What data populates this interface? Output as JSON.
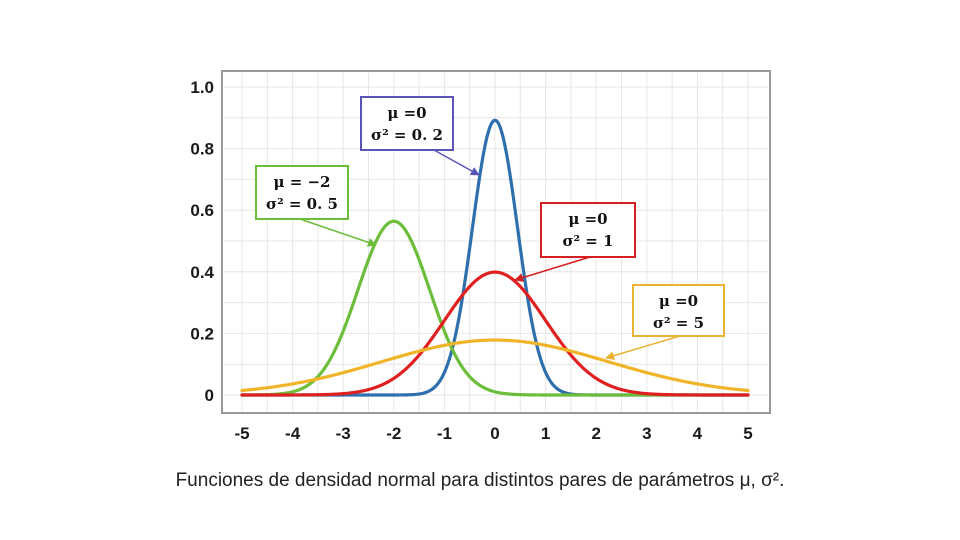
{
  "chart_data": {
    "type": "line",
    "title": "",
    "caption": "Funciones de densidad normal para distintos pares de parámetros μ, σ².",
    "xlim": [
      -5,
      5
    ],
    "ylim": [
      0,
      1.0
    ],
    "xticks": [
      -5,
      -4,
      -3,
      -2,
      -1,
      0,
      1,
      2,
      3,
      4,
      5
    ],
    "xtick_labels": [
      "-5",
      "-4",
      "-3",
      "-2",
      "-1",
      "0",
      "1",
      "2",
      "3",
      "4",
      "5"
    ],
    "yticks": [
      0,
      0.2,
      0.4,
      0.6,
      0.8,
      1.0
    ],
    "ytick_labels": [
      "0",
      "0.2",
      "0.4",
      "0.6",
      "0.8",
      "1.0"
    ],
    "grid": true,
    "series": [
      {
        "name": "μ=0, σ²=0.2",
        "mu": 0,
        "sigma2": 0.2,
        "color": "#2e6fad",
        "label_line1": "μ =0",
        "label_line2": "σ² = 0. 2",
        "box_color": "#5a55b5"
      },
      {
        "name": "μ=−2, σ²=0.5",
        "mu": -2,
        "sigma2": 0.5,
        "color": "#6cbd3a",
        "label_line1": "μ = −2",
        "label_line2": "σ² = 0. 5",
        "box_color": "#6cbd3a"
      },
      {
        "name": "μ=0, σ²=1",
        "mu": 0,
        "sigma2": 1,
        "color": "#e02020",
        "label_line1": "μ =0",
        "label_line2": "σ² = 1",
        "box_color": "#d42020"
      },
      {
        "name": "μ=0, σ²=5",
        "mu": 0,
        "sigma2": 5,
        "color": "#f0b429",
        "label_line1": "μ =0",
        "label_line2": "σ² = 5",
        "box_color": "#e9b230"
      }
    ]
  }
}
